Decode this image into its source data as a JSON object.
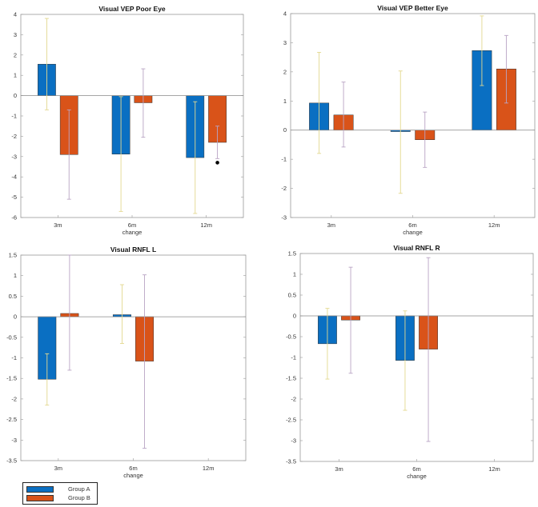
{
  "colors": {
    "group_a": "#0a6fc2",
    "group_b": "#d95319",
    "err_a": "#e3d88f",
    "err_b": "#b9a4c4"
  },
  "legend": {
    "group_a": "Group A",
    "group_b": "Group B"
  },
  "chart_data": [
    {
      "type": "bar",
      "title": "Visual VEP Poor Eye",
      "xlabel": "change",
      "ylabel": "",
      "categories": [
        "3m",
        "6m",
        "12m"
      ],
      "ylim": [
        -6,
        4
      ],
      "yticks": [
        "-6",
        "-5",
        "-4",
        "-3",
        "-2",
        "-1",
        "0",
        "1",
        "2",
        "3",
        "4"
      ],
      "series": [
        {
          "name": "Group A",
          "values": [
            1.55,
            -2.88,
            -3.05
          ],
          "err_low": [
            -0.7,
            -5.7,
            -5.8
          ],
          "err_high": [
            3.8,
            -0.05,
            -0.3
          ]
        },
        {
          "name": "Group B",
          "values": [
            -2.9,
            -0.35,
            -2.3
          ],
          "err_low": [
            -5.1,
            -2.05,
            -3.1
          ],
          "err_high": [
            -0.7,
            1.32,
            -1.5
          ]
        }
      ],
      "outliers": [
        {
          "series": "Group B",
          "category": "12m",
          "value": -3.3
        }
      ]
    },
    {
      "type": "bar",
      "title": "Visual VEP Better Eye",
      "xlabel": "change",
      "ylabel": "",
      "categories": [
        "3m",
        "6m",
        "12m"
      ],
      "ylim": [
        -3,
        4
      ],
      "yticks": [
        "-3",
        "-2",
        "-1",
        "0",
        "1",
        "2",
        "3",
        "4"
      ],
      "series": [
        {
          "name": "Group A",
          "values": [
            0.93,
            -0.05,
            2.73
          ],
          "err_low": [
            -0.8,
            -2.17,
            1.53
          ],
          "err_high": [
            2.67,
            2.03,
            3.92
          ]
        },
        {
          "name": "Group B",
          "values": [
            0.52,
            -0.33,
            2.1
          ],
          "err_low": [
            -0.58,
            -1.28,
            0.93
          ],
          "err_high": [
            1.65,
            0.62,
            3.25
          ]
        }
      ],
      "outliers": []
    },
    {
      "type": "bar",
      "title": "Visual RNFL L",
      "xlabel": "change",
      "ylabel": "",
      "categories": [
        "3m",
        "6m",
        "12m"
      ],
      "ylim": [
        -3.5,
        1.5
      ],
      "yticks": [
        "-3.5",
        "-3",
        "-2.5",
        "-2",
        "-1.5",
        "-1",
        "-0.5",
        "0",
        "0.5",
        "1",
        "1.5"
      ],
      "series": [
        {
          "name": "Group A",
          "values": [
            -1.52,
            0.05,
            null
          ],
          "err_low": [
            -2.15,
            -0.65,
            null
          ],
          "err_high": [
            -0.9,
            0.78,
            null
          ]
        },
        {
          "name": "Group B",
          "values": [
            0.08,
            -1.08,
            null
          ],
          "err_low": [
            -1.3,
            -3.2,
            null
          ],
          "err_high": [
            1.5,
            1.02,
            null
          ]
        }
      ],
      "outliers": []
    },
    {
      "type": "bar",
      "title": "Visual RNFL R",
      "xlabel": "change",
      "ylabel": "",
      "categories": [
        "3m",
        "6m",
        "12m"
      ],
      "ylim": [
        -3.5,
        1.5
      ],
      "yticks": [
        "-3.5",
        "-3",
        "-2.5",
        "-2",
        "-1.5",
        "-1",
        "-0.5",
        "0",
        "0.5",
        "1",
        "1.5"
      ],
      "series": [
        {
          "name": "Group A",
          "values": [
            -0.67,
            -1.07,
            null
          ],
          "err_low": [
            -1.52,
            -2.27,
            null
          ],
          "err_high": [
            0.18,
            0.12,
            null
          ]
        },
        {
          "name": "Group B",
          "values": [
            -0.1,
            -0.8,
            null
          ],
          "err_low": [
            -1.38,
            -3.02,
            null
          ],
          "err_high": [
            1.17,
            1.4,
            null
          ]
        }
      ],
      "outliers": []
    }
  ]
}
